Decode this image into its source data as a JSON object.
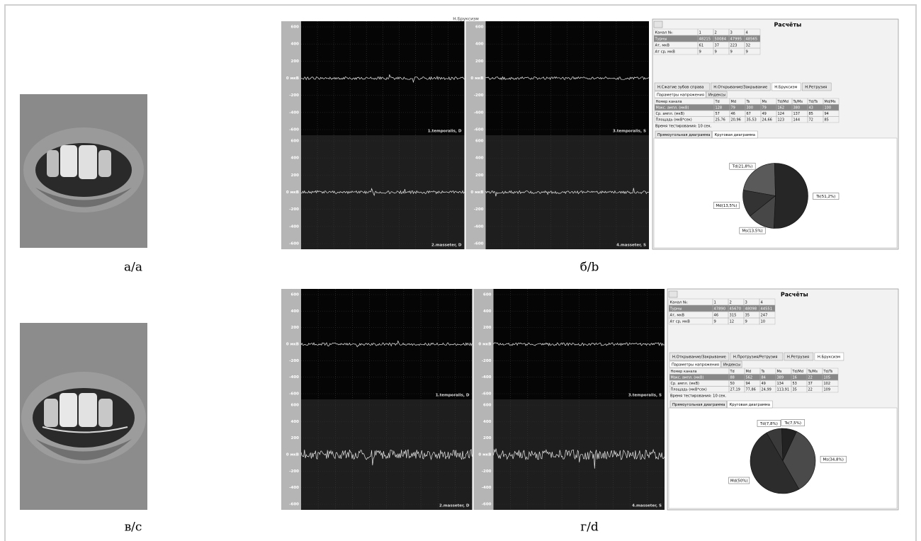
{
  "captions": [
    "а/а",
    "б/b",
    "в/с",
    "г/d"
  ],
  "panels": [
    {
      "emg": {
        "header": "Н.Бруксизм",
        "ytick_labels": [
          "600",
          "400",
          "200",
          "0 мкВ",
          "-200",
          "-400",
          "-600"
        ],
        "channels": [
          "1.temporalis, D",
          "3.temporalis, S",
          "2.masseter, D",
          "4.masseter, S"
        ]
      },
      "results": {
        "title": "Расчёты",
        "table1": [
          [
            "Канал №:",
            "1",
            "2",
            "3",
            "4"
          ],
          [
            "Турны",
            "48215",
            "50084",
            "47995",
            "48565"
          ],
          [
            "Ат, мкВ",
            "61",
            "37",
            "223",
            "32"
          ],
          [
            "Ат ср, мкВ",
            "9",
            "9",
            "9",
            "9"
          ]
        ],
        "tabs": [
          "Н.Сжатие зубов справа",
          "Н.Открывание/Закрывание",
          "Н.Бруксизм",
          "Н.Ретрузия"
        ],
        "subtabs": [
          "Параметры напряжения",
          "Индексы"
        ],
        "table2": [
          [
            "Номер канала",
            "Td",
            "Md",
            "Ts",
            "Ms",
            "Td/Md",
            "Ts/Ms",
            "Td/Ts",
            "Md/Ms"
          ],
          [
            "Макс. ампл. (мкВ)",
            "128",
            "79",
            "300",
            "79",
            "162",
            "380",
            "43",
            "100"
          ],
          [
            "Ср. ампл. (мкВ)",
            "57",
            "46",
            "67",
            "49",
            "124",
            "137",
            "85",
            "94"
          ],
          [
            "Площадь (мкВ*сек)",
            "25,76",
            "20,96",
            "35,53",
            "24,66",
            "123",
            "144",
            "72",
            "85"
          ]
        ],
        "test_time": "Время тестирования: 10 сек.",
        "chart_tabs": [
          "Прямоугольная диаграмма",
          "Круговая диаграмма"
        ],
        "pie": [
          {
            "label": "Td(21,8%)",
            "value": 21.8,
            "color": "#5a5a5a"
          },
          {
            "label": "Ts(51,2%)",
            "value": 51.2,
            "color": "#262626"
          },
          {
            "label": "Ms(13,5%)",
            "value": 13.5,
            "color": "#474747"
          },
          {
            "label": "Md(13,5%)",
            "value": 13.5,
            "color": "#333333"
          }
        ]
      }
    },
    {
      "emg": {
        "header": "",
        "ytick_labels": [
          "600",
          "400",
          "200",
          "0 мкВ",
          "-200",
          "-400",
          "-600"
        ],
        "channels": [
          "1.temporalis, D",
          "3.temporalis, S",
          "2.masseter, D",
          "4.masseter, S"
        ]
      },
      "results": {
        "title": "Расчёты",
        "table1": [
          [
            "Канал №:",
            "1",
            "2",
            "3",
            "4"
          ],
          [
            "Турны",
            "47890",
            "45670",
            "48098",
            "44551"
          ],
          [
            "Ат, мкВ",
            "46",
            "315",
            "35",
            "247"
          ],
          [
            "Ат ср, мкВ",
            "9",
            "12",
            "9",
            "10"
          ]
        ],
        "tabs": [
          "Н.Открывание/Закрывание",
          "Н.Протрузия/Ретрузия",
          "Н.Ретрузия",
          "Н.Бруксизм"
        ],
        "subtabs": [
          "Параметры напряжения",
          "Индексы"
        ],
        "table2": [
          [
            "Номер канала",
            "Td",
            "Md",
            "Ts",
            "Ms",
            "Td/Md",
            "Ts/Ms",
            "Td/Ts"
          ],
          [
            "Макс. ампл. (мкВ)",
            "88",
            "562",
            "84",
            "389",
            "16",
            "22",
            "105"
          ],
          [
            "Ср. ампл. (мкВ)",
            "50",
            "94",
            "49",
            "134",
            "53",
            "37",
            "102"
          ],
          [
            "Площадь (мкВ*сек)",
            "27,19",
            "77,86",
            "24,99",
            "113,91",
            "35",
            "22",
            "109"
          ]
        ],
        "test_time": "Время тестирования: 10 сек.",
        "chart_tabs": [
          "Прямоугольная диаграмма",
          "Круговая диаграмма"
        ],
        "pie": [
          {
            "label": "Td(7,8%)",
            "value": 7.8,
            "color": "#3a3a3a"
          },
          {
            "label": "Ts(7,5%)",
            "value": 7.5,
            "color": "#222222"
          },
          {
            "label": "Ms(34,8%)",
            "value": 34.8,
            "color": "#4a4a4a"
          },
          {
            "label": "Md(50%)",
            "value": 50,
            "color": "#2c2c2c"
          }
        ]
      }
    }
  ]
}
